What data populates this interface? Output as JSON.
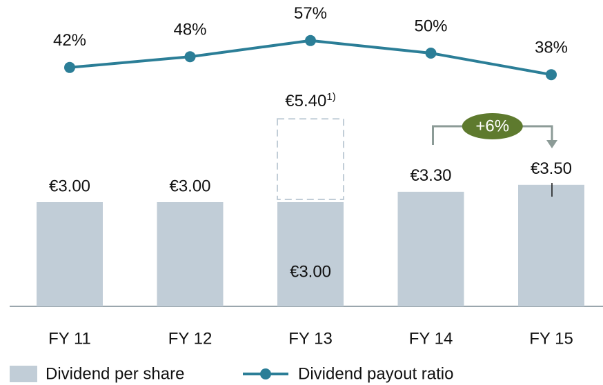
{
  "chart_data": {
    "type": "bar_line",
    "categories": [
      "FY 11",
      "FY 12",
      "FY 13",
      "FY 14",
      "FY 15"
    ],
    "series": [
      {
        "name": "Dividend per share",
        "type": "bar",
        "color": "#c1cdd7",
        "values": [
          3.0,
          3.0,
          3.0,
          3.3,
          3.5
        ],
        "value_labels": [
          "€3.00",
          "€3.00",
          "€3.00",
          "€3.30",
          "€3.50"
        ]
      },
      {
        "name": "Dividend payout ratio",
        "type": "line",
        "axis": "y2",
        "color": "#2b7e97",
        "values": [
          42,
          48,
          57,
          50,
          38
        ],
        "value_labels": [
          "42%",
          "48%",
          "57%",
          "50%",
          "38%"
        ]
      }
    ],
    "ylim": [
      0,
      6
    ],
    "y2lim": [
      0,
      100
    ],
    "annotations": [
      {
        "category": 2,
        "value": 5.4,
        "label": "€5.40",
        "footnote": "1)",
        "style": "dashed"
      }
    ],
    "growth": {
      "from": 3,
      "to": 4,
      "label": "+6%",
      "color": "#5e7a2e",
      "arrow_color": "#8c9b97"
    }
  }
}
